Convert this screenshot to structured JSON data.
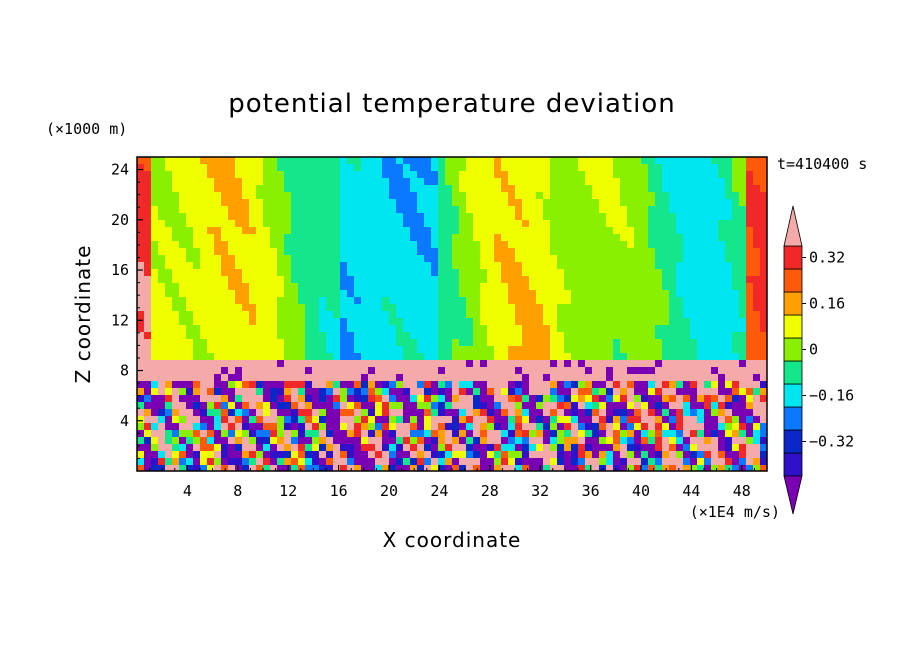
{
  "chart_data": {
    "type": "heatmap",
    "title": "potential temperature deviation",
    "xlabel": "X coordinate",
    "ylabel": "Z coordinate",
    "x_unit": "(×1E4 m/s)",
    "y_unit": "(×1000 m)",
    "time_label": "t=410400 s",
    "xlim": [
      0,
      50
    ],
    "ylim": [
      0,
      25
    ],
    "xticks": [
      "4",
      "8",
      "12",
      "16",
      "20",
      "24",
      "28",
      "32",
      "36",
      "40",
      "44",
      "48"
    ],
    "yticks": [
      "4",
      "8",
      "12",
      "16",
      "20",
      "24"
    ],
    "colorbar": {
      "levels": [
        -0.44,
        -0.36,
        -0.28,
        -0.2,
        -0.12,
        -0.04,
        0.04,
        0.12,
        0.2,
        0.28,
        0.36
      ],
      "labeled_values": [
        "0.32",
        "0.16",
        "0",
        "−0.16",
        "−0.32"
      ],
      "colors": [
        "#7a00b4",
        "#3010c8",
        "#0a28c8",
        "#0a78ff",
        "#00e6f0",
        "#14e68c",
        "#88f000",
        "#f0ff00",
        "#ffa000",
        "#ff5a0a",
        "#f02828",
        "#f5aaaa"
      ]
    },
    "grid": false,
    "legend_position": "right"
  }
}
